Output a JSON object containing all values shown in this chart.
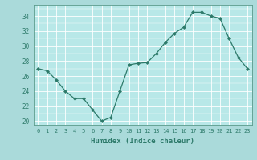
{
  "x": [
    0,
    1,
    2,
    3,
    4,
    5,
    6,
    7,
    8,
    9,
    10,
    11,
    12,
    13,
    14,
    15,
    16,
    17,
    18,
    19,
    20,
    21,
    22,
    23
  ],
  "y": [
    27,
    26.7,
    25.5,
    24,
    23,
    23,
    21.5,
    20,
    20.5,
    24,
    27.5,
    27.7,
    27.8,
    29,
    30.5,
    31.7,
    32.5,
    34.5,
    34.5,
    34,
    33.7,
    31,
    28.5,
    27
  ],
  "xlabel": "Humidex (Indice chaleur)",
  "ylim": [
    19.5,
    35.5
  ],
  "yticks": [
    20,
    22,
    24,
    26,
    28,
    30,
    32,
    34
  ],
  "xticks": [
    0,
    1,
    2,
    3,
    4,
    5,
    6,
    7,
    8,
    9,
    10,
    11,
    12,
    13,
    14,
    15,
    16,
    17,
    18,
    19,
    20,
    21,
    22,
    23
  ],
  "line_color": "#2d7a6a",
  "bg_color": "#aadada",
  "plot_bg": "#b8e8e8",
  "grid_color": "#ffffff",
  "tick_color": "#2d7a6a",
  "label_color": "#2d7a6a"
}
